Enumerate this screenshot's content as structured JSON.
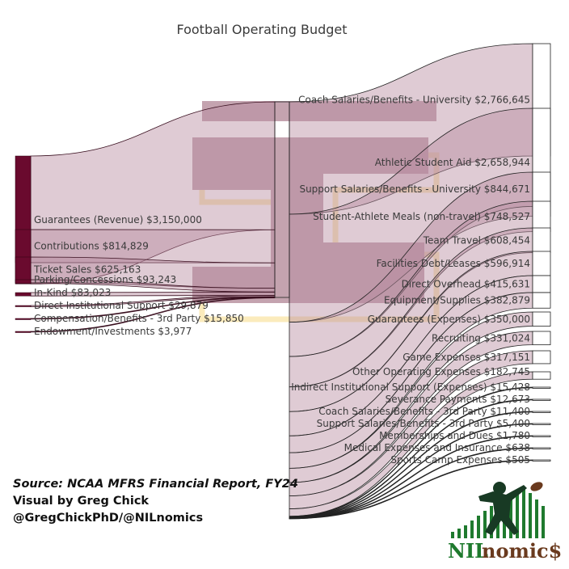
{
  "chart_data": {
    "type": "sankey",
    "title": "Football Operating Budget",
    "center_node": "",
    "revenues": [
      {
        "label": "Guarantees (Revenue) $3,150,000",
        "value": 3150000
      },
      {
        "label": "Contributions $814,829",
        "value": 814829
      },
      {
        "label": "Ticket Sales $625,163",
        "value": 625163
      },
      {
        "label": "Parking/Concessions $93,243",
        "value": 93243
      },
      {
        "label": "In-Kind $83,023",
        "value": 83023
      },
      {
        "label": "Direct Institutional Support $29,879",
        "value": 29879
      },
      {
        "label": "Compensation/Benefits - 3rd Party $15,850",
        "value": 15850
      },
      {
        "label": "Endowment/Investments $3,977",
        "value": 3977
      }
    ],
    "expenses": [
      {
        "label": "Coach Salaries/Benefits - University $2,766,645",
        "value": 2766645
      },
      {
        "label": "Athletic Student Aid $2,658,944",
        "value": 2658944
      },
      {
        "label": "Support Salaries/Benefits - University $844,671",
        "value": 844671
      },
      {
        "label": "Student-Athlete Meals (non-travel) $748,527",
        "value": 748527
      },
      {
        "label": "Team Travel $608,454",
        "value": 608454
      },
      {
        "label": "Facilities Debt/Leases $596,914",
        "value": 596914
      },
      {
        "label": "Direct Overhead $415,631",
        "value": 415631
      },
      {
        "label": "Equipment/Supplies $382,879",
        "value": 382879
      },
      {
        "label": "Guarantees (Expenses) $350,000",
        "value": 350000
      },
      {
        "label": "Recruiting $331,024",
        "value": 331024
      },
      {
        "label": "Game Expenses $317,151",
        "value": 317151
      },
      {
        "label": "Other Operating Expenses $182,745",
        "value": 182745
      },
      {
        "label": "Indirect Institutional Support (Expenses) $15,428",
        "value": 15428
      },
      {
        "label": "Severance Payments $12,673",
        "value": 12673
      },
      {
        "label": "Coach Salaries/Benefits - 3rd Party $11,400",
        "value": 11400
      },
      {
        "label": "Support Salaries/Benefits - 3rd Party $5,400",
        "value": 5400
      },
      {
        "label": "Memberships and Dues $1,780",
        "value": 1780
      },
      {
        "label": "Medical Expenses and Insurance $638",
        "value": 638
      },
      {
        "label": "Sports Camp Expenses $505",
        "value": 505
      }
    ],
    "colors": {
      "revenue_node": "#6a0a2e",
      "flow": "#b88ca0",
      "watermark_maroon": "#8a4a62",
      "watermark_gold": "#f7d77a"
    }
  },
  "credits": {
    "source": "Source: NCAA MFRS Financial Report, FY24",
    "visual": "Visual by Greg Chick",
    "handles": "@GregChickPhD/@NILnomics"
  },
  "logo": {
    "text_nil": "NIL",
    "text_rest": "nomic$",
    "icon": "football-player-icon"
  }
}
